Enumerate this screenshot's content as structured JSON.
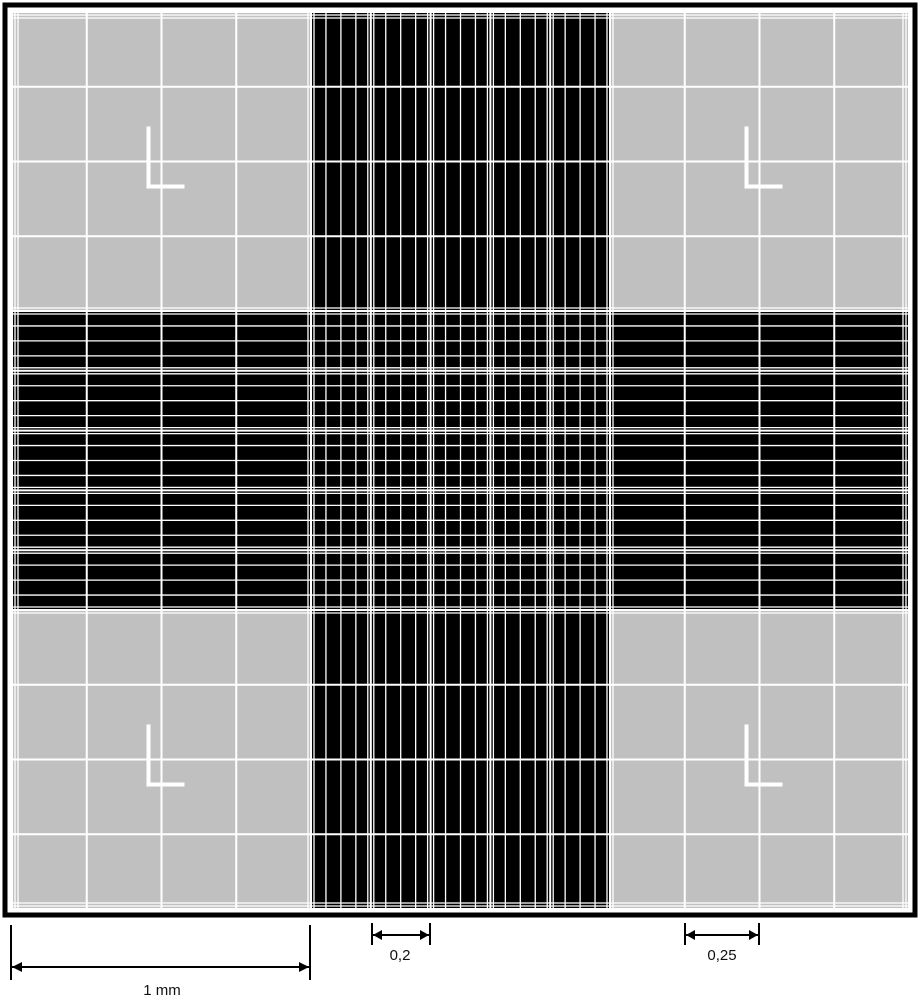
{
  "diagram": {
    "colors": {
      "frame": "#000000",
      "corner_fill": "#c0c0c0",
      "center_fill": "#000000",
      "lines": "#ffffff"
    },
    "corner_square_marker": "L",
    "scale_bars": [
      {
        "label": "1 mm"
      },
      {
        "label": "0,2"
      },
      {
        "label": "0,25"
      }
    ]
  }
}
